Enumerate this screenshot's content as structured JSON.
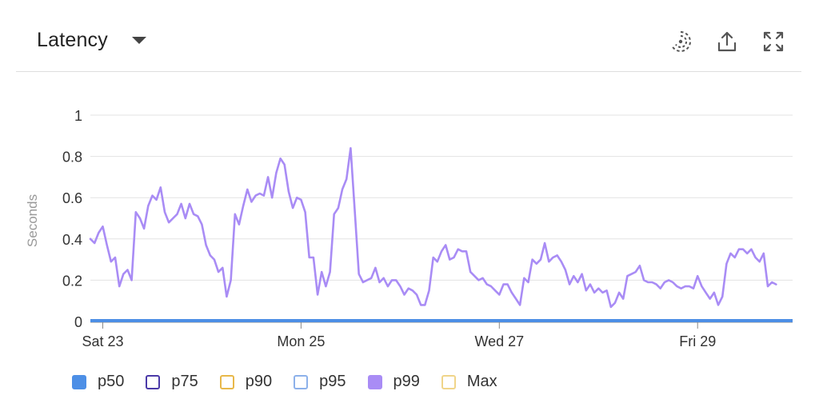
{
  "header": {
    "title": "Latency",
    "icons": [
      "stream-icon",
      "share-icon",
      "fullscreen-icon"
    ]
  },
  "chart_data": {
    "type": "line",
    "ylabel": "Seconds",
    "xlabel": "",
    "ylim": [
      0,
      1
    ],
    "yticks": [
      {
        "value": 0,
        "label": "0"
      },
      {
        "value": 0.2,
        "label": "0.2"
      },
      {
        "value": 0.4,
        "label": "0.4"
      },
      {
        "value": 0.6,
        "label": "0.6"
      },
      {
        "value": 0.8,
        "label": "0.8"
      },
      {
        "value": 1,
        "label": "1"
      }
    ],
    "xlim": [
      "2024-03-22 21:00",
      "2024-03-29 23:00"
    ],
    "xticks": [
      {
        "value": "2024-03-23 00:00",
        "label": "Sat 23"
      },
      {
        "value": "2024-03-25 00:00",
        "label": "Mon 25"
      },
      {
        "value": "2024-03-27 00:00",
        "label": "Wed 27"
      },
      {
        "value": "2024-03-29 00:00",
        "label": "Fri 29"
      }
    ],
    "grid": true,
    "legend_position": "bottom",
    "series": [
      {
        "name": "p50",
        "color": "#4d8fe6",
        "style": "filled",
        "values": "constant-near-zero"
      },
      {
        "name": "p75",
        "color": "#4b3aa8",
        "style": "outline"
      },
      {
        "name": "p90",
        "color": "#e8b84a",
        "style": "outline"
      },
      {
        "name": "p95",
        "color": "#8db1ea",
        "style": "outline"
      },
      {
        "name": "p99",
        "color": "#a98cf5",
        "style": "filled",
        "points": [
          [
            "2024-03-22 21:00",
            0.4
          ],
          [
            "2024-03-22 22:00",
            0.38
          ],
          [
            "2024-03-22 23:00",
            0.43
          ],
          [
            "2024-03-23 00:00",
            0.46
          ],
          [
            "2024-03-23 01:00",
            0.37
          ],
          [
            "2024-03-23 02:00",
            0.29
          ],
          [
            "2024-03-23 03:00",
            0.31
          ],
          [
            "2024-03-23 04:00",
            0.17
          ],
          [
            "2024-03-23 05:00",
            0.23
          ],
          [
            "2024-03-23 06:00",
            0.25
          ],
          [
            "2024-03-23 07:00",
            0.2
          ],
          [
            "2024-03-23 08:00",
            0.53
          ],
          [
            "2024-03-23 09:00",
            0.5
          ],
          [
            "2024-03-23 10:00",
            0.45
          ],
          [
            "2024-03-23 11:00",
            0.56
          ],
          [
            "2024-03-23 12:00",
            0.61
          ],
          [
            "2024-03-23 13:00",
            0.59
          ],
          [
            "2024-03-23 14:00",
            0.65
          ],
          [
            "2024-03-23 15:00",
            0.53
          ],
          [
            "2024-03-23 16:00",
            0.48
          ],
          [
            "2024-03-23 17:00",
            0.5
          ],
          [
            "2024-03-23 18:00",
            0.52
          ],
          [
            "2024-03-23 19:00",
            0.57
          ],
          [
            "2024-03-23 20:00",
            0.5
          ],
          [
            "2024-03-23 21:00",
            0.57
          ],
          [
            "2024-03-23 22:00",
            0.52
          ],
          [
            "2024-03-23 23:00",
            0.51
          ],
          [
            "2024-03-24 00:00",
            0.47
          ],
          [
            "2024-03-24 01:00",
            0.37
          ],
          [
            "2024-03-24 02:00",
            0.32
          ],
          [
            "2024-03-24 03:00",
            0.3
          ],
          [
            "2024-03-24 04:00",
            0.24
          ],
          [
            "2024-03-24 05:00",
            0.26
          ],
          [
            "2024-03-24 06:00",
            0.12
          ],
          [
            "2024-03-24 07:00",
            0.2
          ],
          [
            "2024-03-24 08:00",
            0.52
          ],
          [
            "2024-03-24 09:00",
            0.47
          ],
          [
            "2024-03-24 10:00",
            0.56
          ],
          [
            "2024-03-24 11:00",
            0.64
          ],
          [
            "2024-03-24 12:00",
            0.58
          ],
          [
            "2024-03-24 13:00",
            0.61
          ],
          [
            "2024-03-24 14:00",
            0.62
          ],
          [
            "2024-03-24 15:00",
            0.61
          ],
          [
            "2024-03-24 16:00",
            0.7
          ],
          [
            "2024-03-24 17:00",
            0.6
          ],
          [
            "2024-03-24 18:00",
            0.72
          ],
          [
            "2024-03-24 19:00",
            0.79
          ],
          [
            "2024-03-24 20:00",
            0.76
          ],
          [
            "2024-03-24 21:00",
            0.63
          ],
          [
            "2024-03-24 22:00",
            0.55
          ],
          [
            "2024-03-24 23:00",
            0.6
          ],
          [
            "2024-03-25 00:00",
            0.59
          ],
          [
            "2024-03-25 01:00",
            0.53
          ],
          [
            "2024-03-25 02:00",
            0.31
          ],
          [
            "2024-03-25 03:00",
            0.31
          ],
          [
            "2024-03-25 04:00",
            0.13
          ],
          [
            "2024-03-25 05:00",
            0.24
          ],
          [
            "2024-03-25 06:00",
            0.17
          ],
          [
            "2024-03-25 07:00",
            0.24
          ],
          [
            "2024-03-25 08:00",
            0.52
          ],
          [
            "2024-03-25 09:00",
            0.55
          ],
          [
            "2024-03-25 10:00",
            0.64
          ],
          [
            "2024-03-25 11:00",
            0.69
          ],
          [
            "2024-03-25 12:00",
            0.84
          ],
          [
            "2024-03-25 13:00",
            0.54
          ],
          [
            "2024-03-25 14:00",
            0.23
          ],
          [
            "2024-03-25 15:00",
            0.19
          ],
          [
            "2024-03-25 16:00",
            0.2
          ],
          [
            "2024-03-25 17:00",
            0.21
          ],
          [
            "2024-03-25 18:00",
            0.26
          ],
          [
            "2024-03-25 19:00",
            0.19
          ],
          [
            "2024-03-25 20:00",
            0.21
          ],
          [
            "2024-03-25 21:00",
            0.17
          ],
          [
            "2024-03-25 22:00",
            0.2
          ],
          [
            "2024-03-25 23:00",
            0.2
          ],
          [
            "2024-03-26 00:00",
            0.17
          ],
          [
            "2024-03-26 01:00",
            0.13
          ],
          [
            "2024-03-26 02:00",
            0.16
          ],
          [
            "2024-03-26 03:00",
            0.15
          ],
          [
            "2024-03-26 04:00",
            0.13
          ],
          [
            "2024-03-26 05:00",
            0.08
          ],
          [
            "2024-03-26 06:00",
            0.08
          ],
          [
            "2024-03-26 07:00",
            0.15
          ],
          [
            "2024-03-26 08:00",
            0.31
          ],
          [
            "2024-03-26 09:00",
            0.29
          ],
          [
            "2024-03-26 10:00",
            0.34
          ],
          [
            "2024-03-26 11:00",
            0.37
          ],
          [
            "2024-03-26 12:00",
            0.3
          ],
          [
            "2024-03-26 13:00",
            0.31
          ],
          [
            "2024-03-26 14:00",
            0.35
          ],
          [
            "2024-03-26 15:00",
            0.34
          ],
          [
            "2024-03-26 16:00",
            0.34
          ],
          [
            "2024-03-26 17:00",
            0.24
          ],
          [
            "2024-03-26 18:00",
            0.22
          ],
          [
            "2024-03-26 19:00",
            0.2
          ],
          [
            "2024-03-26 20:00",
            0.21
          ],
          [
            "2024-03-26 21:00",
            0.18
          ],
          [
            "2024-03-26 22:00",
            0.17
          ],
          [
            "2024-03-26 23:00",
            0.15
          ],
          [
            "2024-03-27 00:00",
            0.13
          ],
          [
            "2024-03-27 01:00",
            0.18
          ],
          [
            "2024-03-27 02:00",
            0.18
          ],
          [
            "2024-03-27 03:00",
            0.14
          ],
          [
            "2024-03-27 04:00",
            0.11
          ],
          [
            "2024-03-27 05:00",
            0.08
          ],
          [
            "2024-03-27 06:00",
            0.21
          ],
          [
            "2024-03-27 07:00",
            0.19
          ],
          [
            "2024-03-27 08:00",
            0.3
          ],
          [
            "2024-03-27 09:00",
            0.28
          ],
          [
            "2024-03-27 10:00",
            0.3
          ],
          [
            "2024-03-27 11:00",
            0.38
          ],
          [
            "2024-03-27 12:00",
            0.29
          ],
          [
            "2024-03-27 13:00",
            0.31
          ],
          [
            "2024-03-27 14:00",
            0.32
          ],
          [
            "2024-03-27 15:00",
            0.29
          ],
          [
            "2024-03-27 16:00",
            0.25
          ],
          [
            "2024-03-27 17:00",
            0.18
          ],
          [
            "2024-03-27 18:00",
            0.22
          ],
          [
            "2024-03-27 19:00",
            0.19
          ],
          [
            "2024-03-27 20:00",
            0.23
          ],
          [
            "2024-03-27 21:00",
            0.15
          ],
          [
            "2024-03-27 22:00",
            0.18
          ],
          [
            "2024-03-27 23:00",
            0.14
          ],
          [
            "2024-03-28 00:00",
            0.16
          ],
          [
            "2024-03-28 01:00",
            0.14
          ],
          [
            "2024-03-28 02:00",
            0.15
          ],
          [
            "2024-03-28 03:00",
            0.07
          ],
          [
            "2024-03-28 04:00",
            0.09
          ],
          [
            "2024-03-28 05:00",
            0.14
          ],
          [
            "2024-03-28 06:00",
            0.11
          ],
          [
            "2024-03-28 07:00",
            0.22
          ],
          [
            "2024-03-28 08:00",
            0.23
          ],
          [
            "2024-03-28 09:00",
            0.24
          ],
          [
            "2024-03-28 10:00",
            0.27
          ],
          [
            "2024-03-28 11:00",
            0.2
          ],
          [
            "2024-03-28 12:00",
            0.19
          ],
          [
            "2024-03-28 13:00",
            0.19
          ],
          [
            "2024-03-28 14:00",
            0.18
          ],
          [
            "2024-03-28 15:00",
            0.16
          ],
          [
            "2024-03-28 16:00",
            0.19
          ],
          [
            "2024-03-28 17:00",
            0.2
          ],
          [
            "2024-03-28 18:00",
            0.19
          ],
          [
            "2024-03-28 19:00",
            0.17
          ],
          [
            "2024-03-28 20:00",
            0.16
          ],
          [
            "2024-03-28 21:00",
            0.17
          ],
          [
            "2024-03-28 22:00",
            0.17
          ],
          [
            "2024-03-28 23:00",
            0.16
          ],
          [
            "2024-03-29 00:00",
            0.22
          ],
          [
            "2024-03-29 01:00",
            0.17
          ],
          [
            "2024-03-29 02:00",
            0.14
          ],
          [
            "2024-03-29 03:00",
            0.11
          ],
          [
            "2024-03-29 04:00",
            0.14
          ],
          [
            "2024-03-29 05:00",
            0.08
          ],
          [
            "2024-03-29 06:00",
            0.12
          ],
          [
            "2024-03-29 07:00",
            0.28
          ],
          [
            "2024-03-29 08:00",
            0.33
          ],
          [
            "2024-03-29 09:00",
            0.31
          ],
          [
            "2024-03-29 10:00",
            0.35
          ],
          [
            "2024-03-29 11:00",
            0.35
          ],
          [
            "2024-03-29 12:00",
            0.33
          ],
          [
            "2024-03-29 13:00",
            0.35
          ],
          [
            "2024-03-29 14:00",
            0.31
          ],
          [
            "2024-03-29 15:00",
            0.29
          ],
          [
            "2024-03-29 16:00",
            0.33
          ],
          [
            "2024-03-29 17:00",
            0.17
          ],
          [
            "2024-03-29 18:00",
            0.19
          ],
          [
            "2024-03-29 19:00",
            0.18
          ]
        ]
      },
      {
        "name": "Max",
        "color": "#f0d58a",
        "style": "outline"
      }
    ]
  }
}
